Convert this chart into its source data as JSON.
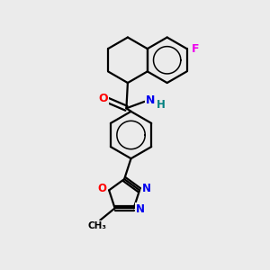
{
  "background_color": "#ebebeb",
  "bond_color": "#000000",
  "atom_colors": {
    "F": "#ee00ee",
    "O": "#ff0000",
    "N": "#0000ee",
    "H": "#008080",
    "C": "#000000"
  },
  "figsize": [
    3.0,
    3.0
  ],
  "dpi": 100
}
